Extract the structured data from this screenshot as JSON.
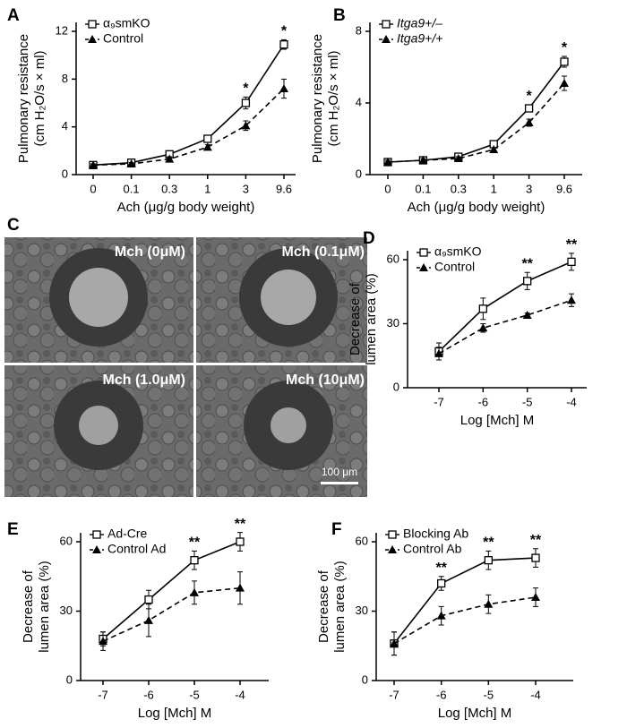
{
  "chart_data": [
    {
      "type": "line",
      "panel": "A",
      "ylabel": [
        "Pulmonary resistance",
        "(cm H₂O/s × ml)"
      ],
      "xlabel": "Ach (μg/g body weight)",
      "categories": [
        "0",
        "0.1",
        "0.3",
        "1",
        "3",
        "9.6"
      ],
      "ylim": [
        0,
        12
      ],
      "yticks": [
        0,
        4,
        8,
        12
      ],
      "series": [
        {
          "name": "α₉smKO",
          "color": "#000000",
          "marker": "square",
          "dashed": false,
          "values": [
            0.8,
            1.0,
            1.7,
            3.0,
            6.0,
            10.9
          ],
          "errors": [
            0.2,
            0.2,
            0.2,
            0.3,
            0.5,
            0.4
          ],
          "significance": [
            null,
            null,
            null,
            null,
            "*",
            "*"
          ]
        },
        {
          "name": "Control",
          "color": "#000000",
          "marker": "triangle",
          "dashed": true,
          "values": [
            0.8,
            0.9,
            1.3,
            2.3,
            4.1,
            7.2
          ],
          "errors": [
            0.1,
            0.1,
            0.2,
            0.2,
            0.4,
            0.8
          ]
        }
      ]
    },
    {
      "type": "line",
      "panel": "B",
      "ylabel": [
        "Pulmonary resistance",
        "(cm H₂O/s × ml)"
      ],
      "xlabel": "Ach (μg/g body weight)",
      "categories": [
        "0",
        "0.1",
        "0.3",
        "1",
        "3",
        "9.6"
      ],
      "ylim": [
        0,
        8
      ],
      "yticks": [
        0,
        4,
        8
      ],
      "series": [
        {
          "name": "Itga9+/–",
          "color": "#000000",
          "marker": "square",
          "dashed": false,
          "values": [
            0.7,
            0.8,
            1.0,
            1.7,
            3.7,
            6.3
          ],
          "errors": [
            0.1,
            0.1,
            0.1,
            0.2,
            0.2,
            0.3
          ],
          "significance": [
            null,
            null,
            null,
            null,
            "*",
            "*"
          ]
        },
        {
          "name": "Itga9+/+",
          "color": "#000000",
          "marker": "triangle",
          "dashed": true,
          "values": [
            0.7,
            0.8,
            0.9,
            1.4,
            2.9,
            5.1
          ],
          "errors": [
            0.1,
            0.1,
            0.1,
            0.1,
            0.2,
            0.4
          ]
        }
      ]
    },
    {
      "type": "line",
      "panel": "D",
      "ylabel": [
        "Decrease of",
        "lumen area (%)"
      ],
      "xlabel": "Log [Mch] M",
      "categories": [
        "-7",
        "-6",
        "-5",
        "-4"
      ],
      "ylim": [
        0,
        60
      ],
      "yticks": [
        0,
        30,
        60
      ],
      "series": [
        {
          "name": "α₉smKO",
          "color": "#000000",
          "marker": "square",
          "dashed": false,
          "values": [
            17,
            37,
            50,
            59
          ],
          "errors": [
            4,
            5,
            4,
            4
          ],
          "significance": [
            null,
            null,
            "**",
            "**"
          ]
        },
        {
          "name": "Control",
          "color": "#000000",
          "marker": "triangle",
          "dashed": true,
          "values": [
            16,
            28,
            34,
            41
          ],
          "errors": [
            3,
            2,
            1,
            3
          ]
        }
      ]
    },
    {
      "type": "line",
      "panel": "E",
      "ylabel": [
        "Decrease of",
        "lumen area (%)"
      ],
      "xlabel": "Log [Mch] M",
      "categories": [
        "-7",
        "-6",
        "-5",
        "-4"
      ],
      "ylim": [
        0,
        60
      ],
      "yticks": [
        0,
        30,
        60
      ],
      "series": [
        {
          "name": "Ad-Cre",
          "color": "#000000",
          "marker": "square",
          "dashed": false,
          "values": [
            18,
            35,
            52,
            60
          ],
          "errors": [
            3,
            4,
            4,
            4
          ],
          "significance": [
            null,
            null,
            "**",
            "**"
          ]
        },
        {
          "name": "Control Ad",
          "color": "#000000",
          "marker": "triangle",
          "dashed": true,
          "values": [
            17,
            26,
            38,
            40
          ],
          "errors": [
            4,
            7,
            5,
            7
          ]
        }
      ]
    },
    {
      "type": "line",
      "panel": "F",
      "ylabel": [
        "Decrease of",
        "lumen area (%)"
      ],
      "xlabel": "Log [Mch] M",
      "categories": [
        "-7",
        "-6",
        "-5",
        "-4"
      ],
      "ylim": [
        0,
        60
      ],
      "yticks": [
        0,
        30,
        60
      ],
      "series": [
        {
          "name": "Blocking Ab",
          "color": "#000000",
          "marker": "square",
          "dashed": false,
          "values": [
            16,
            42,
            52,
            53
          ],
          "errors": [
            5,
            3,
            4,
            4
          ],
          "significance": [
            null,
            "**",
            "**",
            "**"
          ]
        },
        {
          "name": "Control Ab",
          "color": "#000000",
          "marker": "triangle",
          "dashed": true,
          "values": [
            16,
            28,
            33,
            36
          ],
          "errors": [
            5,
            4,
            4,
            4
          ]
        }
      ]
    }
  ],
  "image_panel": {
    "panel": "C",
    "captions": [
      "Mch (0μM)",
      "Mch (0.1μM)",
      "Mch (1.0μM)",
      "Mch (10μM)"
    ],
    "scale_bar": "100 μm"
  }
}
